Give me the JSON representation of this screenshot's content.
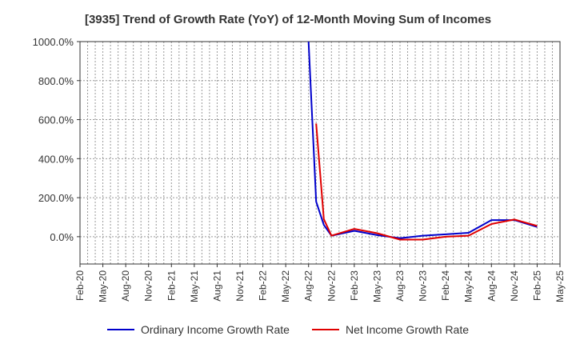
{
  "chart_data": {
    "type": "line",
    "title": "[3935]  Trend of Growth Rate (YoY) of 12-Month Moving Sum of Incomes",
    "xlabel": "",
    "ylabel": "",
    "x_ticks": [
      "Feb-20",
      "May-20",
      "Aug-20",
      "Nov-20",
      "Feb-21",
      "May-21",
      "Aug-21",
      "Nov-21",
      "Feb-22",
      "May-22",
      "Aug-22",
      "Nov-22",
      "Feb-23",
      "May-23",
      "Aug-23",
      "Nov-23",
      "Feb-24",
      "May-24",
      "Aug-24",
      "Nov-24",
      "Feb-25",
      "May-25"
    ],
    "y_ticks": [
      "1000.0%",
      "800.0%",
      "600.0%",
      "400.0%",
      "200.0%",
      "0.0%"
    ],
    "ylim": [
      -140,
      1000
    ],
    "grid": true,
    "legend_position": "bottom",
    "series": [
      {
        "name": "Ordinary Income Growth Rate",
        "color": "#0000cc",
        "points": [
          [
            "Aug-22",
            1000
          ],
          [
            "Sep-22",
            180
          ],
          [
            "Oct-22",
            60
          ],
          [
            "Nov-22",
            5
          ],
          [
            "Feb-23",
            30
          ],
          [
            "May-23",
            8
          ],
          [
            "Aug-23",
            -8
          ],
          [
            "Nov-23",
            5
          ],
          [
            "Feb-24",
            12
          ],
          [
            "May-24",
            20
          ],
          [
            "Aug-24",
            85
          ],
          [
            "Nov-24",
            85
          ],
          [
            "Feb-25",
            50
          ]
        ]
      },
      {
        "name": "Net Income Growth Rate",
        "color": "#e00000",
        "points": [
          [
            "Sep-22",
            580
          ],
          [
            "Oct-22",
            90
          ],
          [
            "Nov-22",
            5
          ],
          [
            "Feb-23",
            40
          ],
          [
            "May-23",
            18
          ],
          [
            "Aug-23",
            -15
          ],
          [
            "Nov-23",
            -15
          ],
          [
            "Feb-24",
            0
          ],
          [
            "May-24",
            5
          ],
          [
            "Aug-24",
            65
          ],
          [
            "Nov-24",
            88
          ],
          [
            "Feb-25",
            55
          ]
        ]
      }
    ]
  }
}
